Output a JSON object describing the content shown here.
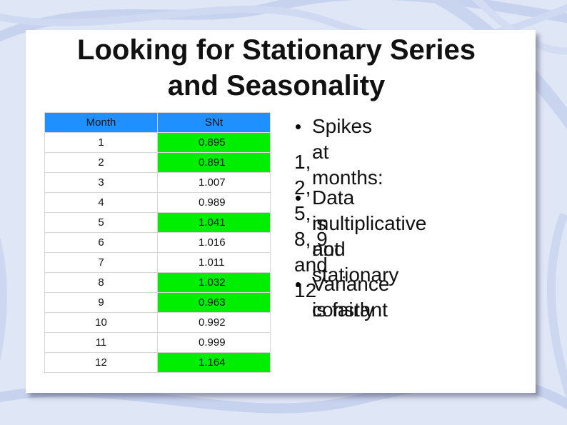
{
  "slide": {
    "title_line1": "Looking for Stationary Series",
    "title_line2": "and Seasonality"
  },
  "table": {
    "headers": [
      "Month",
      "SNt"
    ],
    "rows": [
      {
        "month": "1",
        "snt": "0.895",
        "highlight": true
      },
      {
        "month": "2",
        "snt": "0.891",
        "highlight": true
      },
      {
        "month": "3",
        "snt": "1.007",
        "highlight": false
      },
      {
        "month": "4",
        "snt": "0.989",
        "highlight": false
      },
      {
        "month": "5",
        "snt": "1.041",
        "highlight": true
      },
      {
        "month": "6",
        "snt": "1.016",
        "highlight": false
      },
      {
        "month": "7",
        "snt": "1.011",
        "highlight": false
      },
      {
        "month": "8",
        "snt": "1.032",
        "highlight": true
      },
      {
        "month": "9",
        "snt": "0.963",
        "highlight": true
      },
      {
        "month": "10",
        "snt": "0.992",
        "highlight": false
      },
      {
        "month": "11",
        "snt": "0.999",
        "highlight": false
      },
      {
        "month": "12",
        "snt": "1.164",
        "highlight": true
      }
    ]
  },
  "bullets": {
    "spikes_label": "Spikes at months:",
    "spikes_months": "1, 2, 5, 8, 9 and 12",
    "data_line1": "Data is",
    "data_line2": "multiplicative and",
    "data_line3": "not stationary",
    "variance_line1": "Variance is fairly",
    "variance_line2": "constant"
  },
  "colors": {
    "header_blue": "#1e90ff",
    "highlight_green": "#00ee00",
    "background": "#dfe6f6",
    "swirl": "#c6d2ee"
  }
}
